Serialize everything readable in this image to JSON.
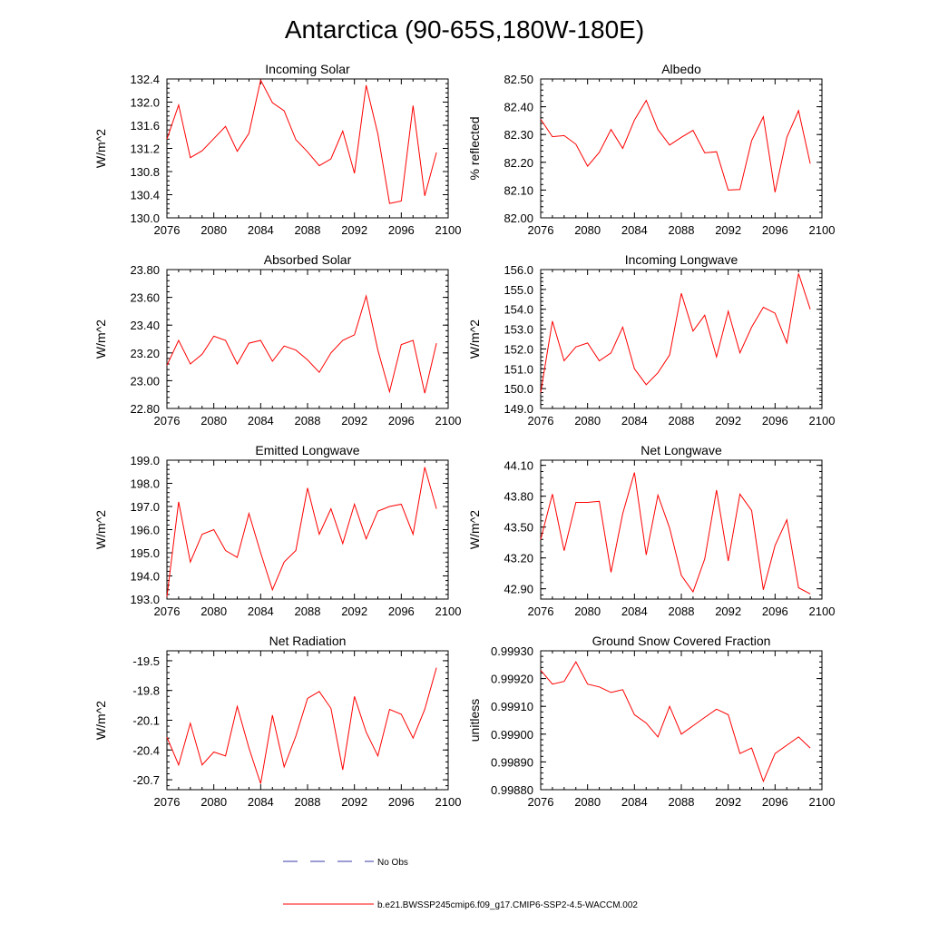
{
  "figure": {
    "title": "Antarctica (90-65S,180W-180E)",
    "legend": [
      {
        "label": "No Obs",
        "color": "#3a3aa8",
        "style": "dashed"
      },
      {
        "label": "b.e21.BWSSP245cmip6.f09_g17.CMIP6-SSP2-4.5-WACCM.002",
        "color": "#ff0000",
        "style": "solid"
      }
    ]
  },
  "chart_data": [
    {
      "type": "line",
      "title": "Incoming Solar",
      "ylabel": "W/m^2",
      "xlabel": "",
      "xlim": [
        2076,
        2100
      ],
      "ylim": [
        130.0,
        132.4
      ],
      "xticks": [
        "2076",
        "2080",
        "2084",
        "2088",
        "2092",
        "2096",
        "2100"
      ],
      "yticks": [
        "130.0",
        "130.4",
        "130.8",
        "131.2",
        "131.6",
        "132.0",
        "132.4"
      ],
      "x": [
        2076,
        2077,
        2078,
        2079,
        2080,
        2081,
        2082,
        2083,
        2084,
        2085,
        2086,
        2087,
        2088,
        2089,
        2090,
        2091,
        2092,
        2093,
        2094,
        2095,
        2096,
        2097,
        2098,
        2099
      ],
      "series": [
        {
          "name": "b.e21.BWSSP245cmip6.f09_g17.CMIP6-SSP2-4.5-WACCM.002",
          "color": "#ff0000",
          "values": [
            131.36,
            131.95,
            131.04,
            131.16,
            131.37,
            131.58,
            131.15,
            131.46,
            132.38,
            131.99,
            131.85,
            131.35,
            131.14,
            130.9,
            131.02,
            131.5,
            130.77,
            132.29,
            131.45,
            130.25,
            130.29,
            131.94,
            130.38,
            131.13
          ]
        }
      ]
    },
    {
      "type": "line",
      "title": "Albedo",
      "ylabel": "% reflected",
      "xlabel": "",
      "xlim": [
        2076,
        2100
      ],
      "ylim": [
        82.0,
        82.5
      ],
      "xticks": [
        "2076",
        "2080",
        "2084",
        "2088",
        "2092",
        "2096",
        "2100"
      ],
      "yticks": [
        "82.00",
        "82.10",
        "82.20",
        "82.30",
        "82.40",
        "82.50"
      ],
      "x": [
        2076,
        2077,
        2078,
        2079,
        2080,
        2081,
        2082,
        2083,
        2084,
        2085,
        2086,
        2087,
        2088,
        2089,
        2090,
        2091,
        2092,
        2093,
        2094,
        2095,
        2096,
        2097,
        2098,
        2099
      ],
      "series": [
        {
          "name": "b.e21.BWSSP245cmip6.f09_g17.CMIP6-SSP2-4.5-WACCM.002",
          "color": "#ff0000",
          "values": [
            82.355,
            82.292,
            82.296,
            82.265,
            82.186,
            82.236,
            82.318,
            82.25,
            82.352,
            82.423,
            82.318,
            82.262,
            82.29,
            82.315,
            82.234,
            82.238,
            82.1,
            82.102,
            82.278,
            82.364,
            82.092,
            82.29,
            82.386,
            82.195
          ]
        }
      ]
    },
    {
      "type": "line",
      "title": "Absorbed Solar",
      "ylabel": "W/m^2",
      "xlabel": "",
      "xlim": [
        2076,
        2100
      ],
      "ylim": [
        22.8,
        23.8
      ],
      "xticks": [
        "2076",
        "2080",
        "2084",
        "2088",
        "2092",
        "2096",
        "2100"
      ],
      "yticks": [
        "22.80",
        "23.00",
        "23.20",
        "23.40",
        "23.60",
        "23.80"
      ],
      "x": [
        2076,
        2077,
        2078,
        2079,
        2080,
        2081,
        2082,
        2083,
        2084,
        2085,
        2086,
        2087,
        2088,
        2089,
        2090,
        2091,
        2092,
        2093,
        2094,
        2095,
        2096,
        2097,
        2098,
        2099
      ],
      "series": [
        {
          "name": "b.e21.BWSSP245cmip6.f09_g17.CMIP6-SSP2-4.5-WACCM.002",
          "color": "#ff0000",
          "values": [
            23.11,
            23.29,
            23.12,
            23.19,
            23.32,
            23.29,
            23.12,
            23.27,
            23.29,
            23.14,
            23.25,
            23.22,
            23.15,
            23.06,
            23.2,
            23.29,
            23.33,
            23.61,
            23.22,
            22.92,
            23.26,
            23.29,
            22.91,
            23.27
          ]
        }
      ]
    },
    {
      "type": "line",
      "title": "Incoming Longwave",
      "ylabel": "W/m^2",
      "xlabel": "",
      "xlim": [
        2076,
        2100
      ],
      "ylim": [
        149.0,
        156.0
      ],
      "xticks": [
        "2076",
        "2080",
        "2084",
        "2088",
        "2092",
        "2096",
        "2100"
      ],
      "yticks": [
        "149.0",
        "150.0",
        "151.0",
        "152.0",
        "153.0",
        "154.0",
        "155.0",
        "156.0"
      ],
      "x": [
        2076,
        2077,
        2078,
        2079,
        2080,
        2081,
        2082,
        2083,
        2084,
        2085,
        2086,
        2087,
        2088,
        2089,
        2090,
        2091,
        2092,
        2093,
        2094,
        2095,
        2096,
        2097,
        2098,
        2099
      ],
      "series": [
        {
          "name": "b.e21.BWSSP245cmip6.f09_g17.CMIP6-SSP2-4.5-WACCM.002",
          "color": "#ff0000",
          "values": [
            149.8,
            153.4,
            151.4,
            152.1,
            152.3,
            151.4,
            151.8,
            153.1,
            151.0,
            150.2,
            150.8,
            151.7,
            154.8,
            152.9,
            153.7,
            151.6,
            153.9,
            151.8,
            153.1,
            154.1,
            153.8,
            152.3,
            155.8,
            154.0
          ]
        }
      ]
    },
    {
      "type": "line",
      "title": "Emitted Longwave",
      "ylabel": "W/m^2",
      "xlabel": "",
      "xlim": [
        2076,
        2100
      ],
      "ylim": [
        193.0,
        199.0
      ],
      "xticks": [
        "2076",
        "2080",
        "2084",
        "2088",
        "2092",
        "2096",
        "2100"
      ],
      "yticks": [
        "193.0",
        "194.0",
        "195.0",
        "196.0",
        "197.0",
        "198.0",
        "199.0"
      ],
      "x": [
        2076,
        2077,
        2078,
        2079,
        2080,
        2081,
        2082,
        2083,
        2084,
        2085,
        2086,
        2087,
        2088,
        2089,
        2090,
        2091,
        2092,
        2093,
        2094,
        2095,
        2096,
        2097,
        2098,
        2099
      ],
      "series": [
        {
          "name": "b.e21.BWSSP245cmip6.f09_g17.CMIP6-SSP2-4.5-WACCM.002",
          "color": "#ff0000",
          "values": [
            193.1,
            197.2,
            194.6,
            195.8,
            196.0,
            195.1,
            194.8,
            196.7,
            195.0,
            193.4,
            194.6,
            195.1,
            197.8,
            195.8,
            196.9,
            195.4,
            197.1,
            195.6,
            196.8,
            197.0,
            197.1,
            195.8,
            198.7,
            196.9
          ]
        }
      ]
    },
    {
      "type": "line",
      "title": "Net Longwave",
      "ylabel": "W/m^2",
      "xlabel": "",
      "xlim": [
        2076,
        2100
      ],
      "ylim": [
        42.8,
        44.15
      ],
      "xticks": [
        "2076",
        "2080",
        "2084",
        "2088",
        "2092",
        "2096",
        "2100"
      ],
      "yticks": [
        "42.90",
        "43.20",
        "43.50",
        "43.80",
        "44.10"
      ],
      "x": [
        2076,
        2077,
        2078,
        2079,
        2080,
        2081,
        2082,
        2083,
        2084,
        2085,
        2086,
        2087,
        2088,
        2089,
        2090,
        2091,
        2092,
        2093,
        2094,
        2095,
        2096,
        2097,
        2098,
        2099
      ],
      "series": [
        {
          "name": "b.e21.BWSSP245cmip6.f09_g17.CMIP6-SSP2-4.5-WACCM.002",
          "color": "#ff0000",
          "values": [
            43.38,
            43.82,
            43.27,
            43.74,
            43.74,
            43.75,
            43.06,
            43.63,
            44.03,
            43.23,
            43.81,
            43.49,
            43.03,
            42.87,
            43.19,
            43.86,
            43.17,
            43.82,
            43.66,
            42.89,
            43.32,
            43.57,
            42.91,
            42.85
          ]
        }
      ]
    },
    {
      "type": "line",
      "title": "Net Radiation",
      "ylabel": "W/m^2",
      "xlabel": "",
      "xlim": [
        2076,
        2100
      ],
      "ylim": [
        -20.8,
        -19.4
      ],
      "xticks": [
        "2076",
        "2080",
        "2084",
        "2088",
        "2092",
        "2096",
        "2100"
      ],
      "yticks": [
        "-20.7",
        "-20.4",
        "-20.1",
        "-19.8",
        "-19.5"
      ],
      "x": [
        2076,
        2077,
        2078,
        2079,
        2080,
        2081,
        2082,
        2083,
        2084,
        2085,
        2086,
        2087,
        2088,
        2089,
        2090,
        2091,
        2092,
        2093,
        2094,
        2095,
        2096,
        2097,
        2098,
        2099
      ],
      "series": [
        {
          "name": "b.e21.BWSSP245cmip6.f09_g17.CMIP6-SSP2-4.5-WACCM.002",
          "color": "#ff0000",
          "values": [
            -20.27,
            -20.55,
            -20.13,
            -20.55,
            -20.42,
            -20.46,
            -19.96,
            -20.38,
            -20.74,
            -20.05,
            -20.57,
            -20.26,
            -19.88,
            -19.81,
            -19.98,
            -20.6,
            -19.86,
            -20.22,
            -20.46,
            -19.99,
            -20.04,
            -20.28,
            -19.99,
            -19.57
          ]
        }
      ]
    },
    {
      "type": "line",
      "title": "Ground Snow Covered Fraction",
      "ylabel": "unitless",
      "xlabel": "",
      "xlim": [
        2076,
        2100
      ],
      "ylim": [
        0.9988,
        0.9993
      ],
      "xticks": [
        "2076",
        "2080",
        "2084",
        "2088",
        "2092",
        "2096",
        "2100"
      ],
      "yticks": [
        "0.99880",
        "0.99890",
        "0.99900",
        "0.99910",
        "0.99920",
        "0.99930"
      ],
      "x": [
        2076,
        2077,
        2078,
        2079,
        2080,
        2081,
        2082,
        2083,
        2084,
        2085,
        2086,
        2087,
        2088,
        2089,
        2090,
        2091,
        2092,
        2093,
        2094,
        2095,
        2096,
        2097,
        2098,
        2099
      ],
      "series": [
        {
          "name": "b.e21.BWSSP245cmip6.f09_g17.CMIP6-SSP2-4.5-WACCM.002",
          "color": "#ff0000",
          "values": [
            0.99923,
            0.99918,
            0.99919,
            0.99926,
            0.99918,
            0.99917,
            0.99915,
            0.99916,
            0.99907,
            0.99904,
            0.99899,
            0.9991,
            0.999,
            0.99903,
            0.99906,
            0.99909,
            0.99907,
            0.99893,
            0.99895,
            0.99883,
            0.99893,
            0.99896,
            0.99899,
            0.99895
          ]
        }
      ]
    }
  ]
}
